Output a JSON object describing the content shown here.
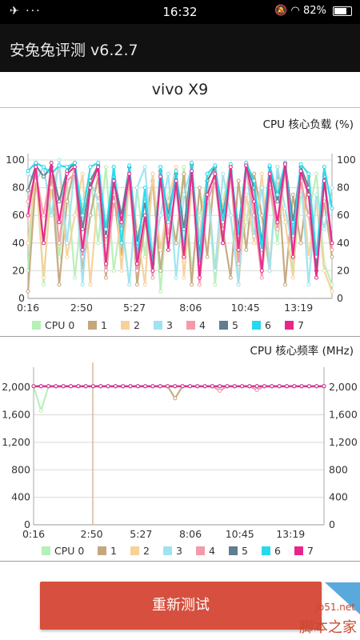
{
  "status_bar": {
    "left_icons": "✈ ···",
    "time": "16:32",
    "battery_text": "82%",
    "battery_level": 0.82
  },
  "app": {
    "title": "安兔兔评测 v6.2.7"
  },
  "device_name": "vivo X9",
  "colors": {
    "cpu0": "#b5f0b5",
    "cpu1": "#c4a87d",
    "cpu2": "#f7d19a",
    "cpu3": "#9ee3f0",
    "cpu4": "#f59aa8",
    "cpu5": "#5f7e8e",
    "cpu6": "#27d9ee",
    "cpu7": "#e8268a",
    "button": "#d64f3f",
    "grid": "#d8d8d8",
    "marker": "#d9b89c"
  },
  "chart_data": [
    {
      "type": "line",
      "title": "CPU 核心负载 (%)",
      "x_ticks": [
        "0:16",
        "2:50",
        "5:27",
        "8:06",
        "10:45",
        "13:19"
      ],
      "y_ticks": [
        "0",
        "20",
        "40",
        "60",
        "80",
        "100"
      ],
      "ylim": [
        0,
        100
      ],
      "legend_position": "bottom",
      "series": [
        {
          "name": "CPU 0",
          "values": [
            20,
            95,
            10,
            90,
            30,
            85,
            15,
            70,
            88,
            40,
            95,
            20,
            60,
            10,
            80,
            30,
            90,
            5,
            75,
            40,
            95,
            20,
            60,
            85,
            10,
            70,
            95,
            30,
            55,
            90,
            15,
            80,
            40,
            95,
            20,
            75,
            60,
            90,
            25,
            10
          ]
        },
        {
          "name": "1",
          "values": [
            5,
            85,
            40,
            90,
            10,
            70,
            95,
            20,
            60,
            88,
            15,
            75,
            30,
            95,
            10,
            55,
            85,
            20,
            70,
            40,
            90,
            10,
            80,
            30,
            95,
            50,
            15,
            85,
            35,
            90,
            60,
            20,
            95,
            10,
            75,
            40,
            88,
            25,
            70,
            30
          ]
        },
        {
          "name": "2",
          "values": [
            40,
            92,
            15,
            80,
            95,
            30,
            60,
            90,
            10,
            75,
            40,
            95,
            20,
            85,
            50,
            10,
            90,
            35,
            70,
            95,
            15,
            80,
            45,
            90,
            20,
            65,
            95,
            10,
            75,
            40,
            90,
            25,
            85,
            55,
            15,
            95,
            30,
            70,
            20,
            5
          ]
        },
        {
          "name": "3",
          "values": [
            90,
            85,
            95,
            60,
            100,
            40,
            95,
            10,
            85,
            70,
            20,
            95,
            55,
            10,
            80,
            95,
            30,
            60,
            90,
            15,
            75,
            95,
            40,
            85,
            20,
            90,
            60,
            10,
            95,
            45,
            80,
            20,
            95,
            65,
            35,
            90,
            10,
            75,
            50,
            80
          ]
        },
        {
          "name": "4",
          "values": [
            70,
            90,
            60,
            95,
            40,
            85,
            90,
            30,
            80,
            95,
            20,
            70,
            50,
            85,
            20,
            60,
            15,
            90,
            45,
            80,
            30,
            95,
            10,
            70,
            85,
            40,
            90,
            25,
            95,
            60,
            15,
            80,
            50,
            95,
            30,
            85,
            60,
            20,
            90,
            35
          ]
        },
        {
          "name": "5",
          "values": [
            78,
            96,
            88,
            95,
            70,
            92,
            98,
            50,
            85,
            96,
            45,
            88,
            60,
            95,
            40,
            70,
            25,
            92,
            60,
            90,
            50,
            97,
            30,
            85,
            95,
            60,
            92,
            50,
            97,
            80,
            40,
            95,
            70,
            98,
            55,
            95,
            80,
            20,
            88,
            40
          ]
        },
        {
          "name": "6",
          "values": [
            92,
            98,
            95,
            90,
            96,
            95,
            98,
            60,
            95,
            98,
            50,
            95,
            40,
            96,
            30,
            80,
            20,
            95,
            55,
            92,
            35,
            98,
            25,
            90,
            96,
            55,
            97,
            45,
            98,
            85,
            35,
            96,
            75,
            98,
            45,
            97,
            90,
            30,
            95,
            65
          ]
        },
        {
          "name": "7",
          "values": [
            60,
            95,
            40,
            98,
            55,
            90,
            95,
            35,
            80,
            95,
            25,
            85,
            55,
            90,
            25,
            60,
            20,
            88,
            35,
            85,
            30,
            92,
            15,
            75,
            90,
            40,
            95,
            35,
            96,
            70,
            20,
            90,
            55,
            97,
            30,
            92,
            75,
            15,
            85,
            40
          ]
        }
      ]
    },
    {
      "type": "line",
      "title": "CPU 核心频率 (MHz)",
      "x_ticks": [
        "0:16",
        "2:50",
        "5:27",
        "8:06",
        "10:45",
        "13:19"
      ],
      "y_ticks": [
        "0",
        "400",
        "800",
        "1,200",
        "1,600",
        "2,000"
      ],
      "ylim": [
        0,
        2200
      ],
      "legend_position": "bottom",
      "series": [
        {
          "name": "CPU 0",
          "values": [
            2016,
            1660,
            2016,
            2016,
            2016,
            2016,
            2016,
            2016,
            2016,
            2016,
            2016,
            2016,
            2016,
            2016,
            2016,
            2016,
            2016,
            2016,
            2016,
            2016,
            2016,
            2016,
            2016,
            2016,
            2016,
            2016,
            2016,
            2016,
            2016,
            2016,
            2016,
            2016,
            2016,
            2016,
            2016,
            2016,
            2016,
            2016,
            2016,
            2016
          ]
        },
        {
          "name": "1",
          "values": [
            2016,
            2016,
            2016,
            2016,
            2016,
            2016,
            2016,
            2016,
            2016,
            2016,
            2016,
            2016,
            2016,
            2016,
            2016,
            2016,
            2016,
            2016,
            2016,
            1840,
            2016,
            2016,
            2016,
            2016,
            2016,
            2016,
            2016,
            2016,
            2016,
            2016,
            2016,
            2016,
            2016,
            2016,
            2016,
            2016,
            2016,
            2016,
            2016,
            2016
          ]
        },
        {
          "name": "2",
          "values": [
            2016,
            2016,
            2016,
            2016,
            2016,
            2016,
            2016,
            2016,
            2016,
            2016,
            2016,
            2016,
            2016,
            2016,
            2016,
            2016,
            2016,
            2016,
            2016,
            2016,
            2016,
            2016,
            2016,
            2016,
            2016,
            2016,
            2016,
            2016,
            2016,
            2016,
            2016,
            2016,
            2016,
            2016,
            2016,
            2016,
            2016,
            2016,
            2016,
            2016
          ]
        },
        {
          "name": "3",
          "values": [
            2016,
            2016,
            2016,
            2016,
            2016,
            2016,
            2016,
            2016,
            2016,
            2016,
            2016,
            2016,
            2016,
            2016,
            2016,
            2016,
            2016,
            2016,
            2016,
            2016,
            2016,
            2016,
            2016,
            2016,
            2016,
            2016,
            2016,
            2016,
            2016,
            2016,
            2016,
            2016,
            2016,
            2016,
            2016,
            2016,
            2016,
            2016,
            2016,
            2016
          ]
        },
        {
          "name": "4",
          "values": [
            2016,
            2016,
            2016,
            2016,
            2016,
            2016,
            2016,
            2016,
            2016,
            2016,
            2016,
            2016,
            2016,
            2016,
            2016,
            2016,
            2016,
            2016,
            2016,
            2016,
            2016,
            2016,
            2016,
            2016,
            2016,
            1950,
            2016,
            2016,
            2016,
            2016,
            1960,
            2016,
            2016,
            2016,
            2016,
            2016,
            2016,
            2016,
            2016,
            2016
          ]
        },
        {
          "name": "5",
          "values": [
            2016,
            2016,
            2016,
            2016,
            2016,
            2016,
            2016,
            2016,
            2016,
            2016,
            2016,
            2016,
            2016,
            2016,
            2016,
            2016,
            2016,
            2016,
            2016,
            2016,
            2016,
            2016,
            2016,
            2016,
            2016,
            2016,
            2016,
            2016,
            2016,
            2016,
            2016,
            2016,
            2016,
            2016,
            2016,
            2016,
            2016,
            2016,
            2016,
            2016
          ]
        },
        {
          "name": "6",
          "values": [
            2016,
            2016,
            2016,
            2016,
            2016,
            2016,
            2016,
            2016,
            2016,
            2016,
            2016,
            2016,
            2016,
            2016,
            2016,
            2016,
            2016,
            2016,
            2016,
            2016,
            2016,
            2016,
            2016,
            2016,
            2016,
            2016,
            2016,
            2016,
            2016,
            2016,
            2016,
            2016,
            2016,
            2016,
            2016,
            2016,
            2016,
            2016,
            2016,
            2016
          ]
        },
        {
          "name": "7",
          "values": [
            2016,
            2016,
            2016,
            2016,
            2016,
            2016,
            2016,
            2016,
            2016,
            2016,
            2016,
            2016,
            2016,
            2016,
            2016,
            2016,
            2016,
            2016,
            2016,
            2016,
            2016,
            2016,
            2016,
            2016,
            2016,
            2016,
            2016,
            2016,
            2016,
            2016,
            2016,
            2016,
            2016,
            2016,
            2016,
            2016,
            2016,
            2016,
            2016,
            2016
          ]
        }
      ]
    }
  ],
  "button": {
    "label": "重新测试"
  },
  "watermark": {
    "line1": "jb51.net",
    "line2": "脚本之家"
  }
}
